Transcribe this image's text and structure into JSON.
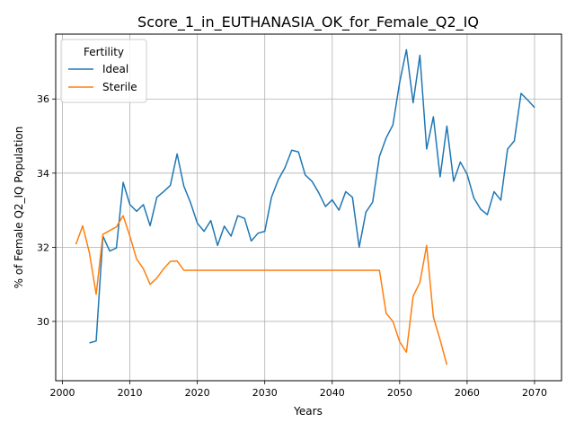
{
  "chart_data": {
    "type": "line",
    "title": "Score_1_in_EUTHANASIA_OK_for_Female_Q2_IQ",
    "xlabel": "Years",
    "ylabel": "% of Female Q2_IQ Population",
    "xlim": [
      1999,
      2074
    ],
    "ylim": [
      28.4,
      37.75
    ],
    "xticks": [
      2000,
      2010,
      2020,
      2030,
      2040,
      2050,
      2060,
      2070
    ],
    "yticks": [
      30,
      32,
      34,
      36
    ],
    "grid": true,
    "legend": {
      "title": "Fertility",
      "placement": "top-left"
    },
    "series": [
      {
        "name": "Ideal",
        "color": "#1f77b4",
        "x": [
          2004,
          2005,
          2006,
          2007,
          2008,
          2009,
          2010,
          2011,
          2012,
          2013,
          2014,
          2015,
          2016,
          2017,
          2018,
          2019,
          2020,
          2021,
          2022,
          2023,
          2024,
          2025,
          2026,
          2027,
          2028,
          2029,
          2030,
          2031,
          2032,
          2033,
          2034,
          2035,
          2036,
          2037,
          2038,
          2039,
          2040,
          2041,
          2042,
          2043,
          2044,
          2045,
          2046,
          2047,
          2048,
          2049,
          2050,
          2051,
          2052,
          2053,
          2054,
          2055,
          2056,
          2057,
          2058,
          2059,
          2060,
          2061,
          2062,
          2063,
          2064,
          2065,
          2066,
          2067,
          2068,
          2069,
          2070
        ],
        "y": [
          29.42,
          29.47,
          32.3,
          31.9,
          31.98,
          33.75,
          33.15,
          32.97,
          33.15,
          32.58,
          33.35,
          33.5,
          33.67,
          34.52,
          33.65,
          33.2,
          32.65,
          32.43,
          32.72,
          32.05,
          32.57,
          32.3,
          32.85,
          32.78,
          32.17,
          32.38,
          32.43,
          33.35,
          33.82,
          34.15,
          34.62,
          34.57,
          33.95,
          33.78,
          33.47,
          33.1,
          33.28,
          33.0,
          33.5,
          33.35,
          32.0,
          32.95,
          33.22,
          34.45,
          34.95,
          35.3,
          36.45,
          37.33,
          35.9,
          37.18,
          34.65,
          35.52,
          33.9,
          35.27,
          33.78,
          34.3,
          33.97,
          33.33,
          33.03,
          32.88,
          33.5,
          33.27,
          34.65,
          34.87,
          36.15,
          35.97,
          35.77
        ]
      },
      {
        "name": "Sterile",
        "color": "#ff7f0e",
        "x": [
          2002,
          2003,
          2004,
          2005,
          2006,
          2007,
          2008,
          2009,
          2010,
          2011,
          2012,
          2013,
          2014,
          2015,
          2016,
          2017,
          2018,
          2019,
          2020,
          2021,
          2022,
          2023,
          2024,
          2025,
          2026,
          2027,
          2028,
          2029,
          2030,
          2031,
          2032,
          2033,
          2034,
          2035,
          2036,
          2037,
          2038,
          2039,
          2040,
          2041,
          2042,
          2043,
          2044,
          2045,
          2046,
          2047,
          2048,
          2049,
          2050,
          2051,
          2052,
          2053,
          2054,
          2055,
          2056,
          2057
        ],
        "y": [
          32.08,
          32.58,
          31.85,
          30.73,
          32.35,
          32.45,
          32.55,
          32.85,
          32.3,
          31.68,
          31.42,
          31.0,
          31.17,
          31.42,
          31.62,
          31.63,
          31.38,
          31.38,
          31.38,
          31.38,
          31.38,
          31.38,
          31.38,
          31.38,
          31.38,
          31.38,
          31.38,
          31.38,
          31.38,
          31.38,
          31.38,
          31.38,
          31.38,
          31.38,
          31.38,
          31.38,
          31.38,
          31.38,
          31.38,
          31.38,
          31.38,
          31.38,
          31.38,
          31.38,
          31.38,
          31.38,
          30.22,
          30.0,
          29.45,
          29.17,
          30.68,
          31.05,
          32.05,
          30.12,
          29.5,
          28.83
        ]
      }
    ]
  }
}
